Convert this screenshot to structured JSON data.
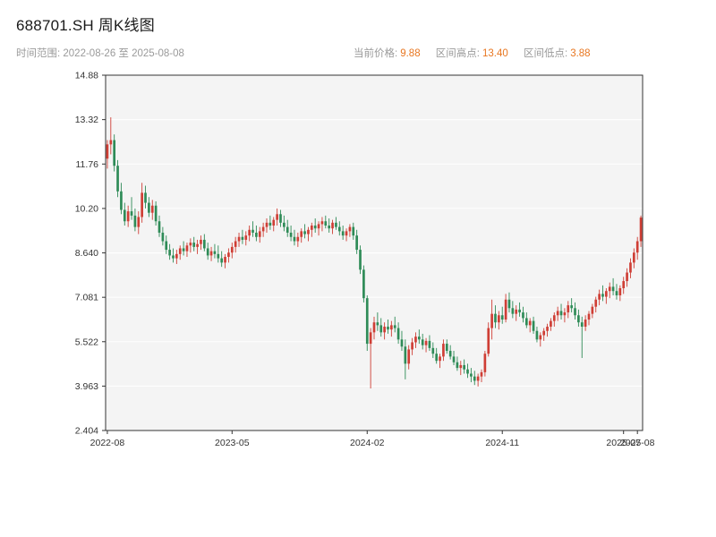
{
  "header": {
    "title": "688701.SH 周K线图",
    "range_label": "时间范围: 2022-08-26 至 2025-08-08",
    "accent_color": "#e87722",
    "stats": [
      {
        "label": "当前价格:",
        "value": "9.88"
      },
      {
        "label": "区间高点:",
        "value": "13.40"
      },
      {
        "label": "区间低点:",
        "value": "3.88"
      }
    ]
  },
  "chart_data": {
    "type": "candlestick",
    "title": "688701.SH 周K线图",
    "frequency": "weekly",
    "date_range": [
      "2022-08-26",
      "2025-08-08"
    ],
    "current_price": 9.88,
    "range_high": 13.4,
    "range_low": 3.88,
    "ylim": [
      2.404,
      14.88
    ],
    "grid": true,
    "colors": {
      "up": "#cf3e35",
      "down": "#2e8b57",
      "plot_bg": "#f4f4f4",
      "grid": "#ffffff",
      "spine": "#333333",
      "tick_text": "#333333"
    },
    "y_ticks": [
      {
        "v": 14.88,
        "label": "14.88"
      },
      {
        "v": 13.32,
        "label": "13.32"
      },
      {
        "v": 11.76,
        "label": "11.76"
      },
      {
        "v": 10.2,
        "label": "10.20"
      },
      {
        "v": 8.64,
        "label": "8.640"
      },
      {
        "v": 7.081,
        "label": "7.081"
      },
      {
        "v": 5.522,
        "label": "5.522"
      },
      {
        "v": 3.963,
        "label": "3.963"
      },
      {
        "v": 2.404,
        "label": "2.404"
      }
    ],
    "x_ticks": [
      {
        "i": 0,
        "label": "2022-08"
      },
      {
        "i": 36,
        "label": "2023-05"
      },
      {
        "i": 75,
        "label": "2024-02"
      },
      {
        "i": 114,
        "label": "2024-11"
      },
      {
        "i": 149,
        "label": "2025-07"
      },
      {
        "i": 153,
        "label": "2025-08"
      }
    ],
    "candles": [
      [
        "2022-08-26",
        11.95,
        12.6,
        11.6,
        12.45
      ],
      [
        "2022-09-02",
        12.45,
        13.4,
        12.1,
        12.6
      ],
      [
        "2022-09-09",
        12.6,
        12.8,
        11.5,
        11.7
      ],
      [
        "2022-09-16",
        11.7,
        11.9,
        10.6,
        10.8
      ],
      [
        "2022-09-23",
        10.8,
        11.1,
        10.0,
        10.15
      ],
      [
        "2022-09-30",
        10.15,
        10.4,
        9.6,
        9.75
      ],
      [
        "2022-10-07",
        9.75,
        10.3,
        9.55,
        10.1
      ],
      [
        "2022-10-14",
        10.1,
        10.6,
        9.8,
        9.95
      ],
      [
        "2022-10-21",
        9.95,
        10.2,
        9.4,
        9.55
      ],
      [
        "2022-10-28",
        9.55,
        10.1,
        9.3,
        9.9
      ],
      [
        "2022-11-04",
        9.9,
        11.1,
        9.7,
        10.75
      ],
      [
        "2022-11-11",
        10.75,
        11.0,
        10.2,
        10.4
      ],
      [
        "2022-11-18",
        10.4,
        10.6,
        9.9,
        10.05
      ],
      [
        "2022-11-25",
        10.05,
        10.5,
        9.8,
        10.3
      ],
      [
        "2022-12-02",
        10.3,
        10.45,
        9.6,
        9.75
      ],
      [
        "2022-12-09",
        9.75,
        9.95,
        9.2,
        9.35
      ],
      [
        "2022-12-16",
        9.35,
        9.55,
        8.9,
        9.05
      ],
      [
        "2022-12-23",
        9.05,
        9.25,
        8.6,
        8.75
      ],
      [
        "2022-12-30",
        8.75,
        8.95,
        8.4,
        8.55
      ],
      [
        "2023-01-06",
        8.55,
        8.8,
        8.3,
        8.45
      ],
      [
        "2023-01-13",
        8.45,
        8.75,
        8.25,
        8.6
      ],
      [
        "2023-01-20",
        8.6,
        8.9,
        8.4,
        8.8
      ],
      [
        "2023-01-27",
        8.8,
        9.05,
        8.55,
        8.7
      ],
      [
        "2023-02-03",
        8.7,
        9.0,
        8.5,
        8.9
      ],
      [
        "2023-02-10",
        8.9,
        9.15,
        8.65,
        9.0
      ],
      [
        "2023-02-17",
        9.0,
        9.2,
        8.7,
        8.85
      ],
      [
        "2023-02-24",
        8.85,
        9.1,
        8.6,
        8.95
      ],
      [
        "2023-03-03",
        8.95,
        9.25,
        8.75,
        9.1
      ],
      [
        "2023-03-10",
        9.1,
        9.3,
        8.7,
        8.8
      ],
      [
        "2023-03-17",
        8.8,
        9.0,
        8.4,
        8.55
      ],
      [
        "2023-03-24",
        8.55,
        8.85,
        8.35,
        8.7
      ],
      [
        "2023-03-31",
        8.7,
        8.95,
        8.45,
        8.6
      ],
      [
        "2023-04-07",
        8.6,
        8.9,
        8.3,
        8.45
      ],
      [
        "2023-04-14",
        8.45,
        8.7,
        8.15,
        8.3
      ],
      [
        "2023-04-21",
        8.3,
        8.6,
        8.1,
        8.5
      ],
      [
        "2023-04-28",
        8.5,
        8.8,
        8.3,
        8.65
      ],
      [
        "2023-05-05",
        8.65,
        9.0,
        8.45,
        8.85
      ],
      [
        "2023-05-12",
        8.85,
        9.2,
        8.65,
        9.05
      ],
      [
        "2023-05-19",
        9.05,
        9.35,
        8.85,
        9.2
      ],
      [
        "2023-05-26",
        9.2,
        9.45,
        8.95,
        9.1
      ],
      [
        "2023-06-02",
        9.1,
        9.4,
        8.9,
        9.25
      ],
      [
        "2023-06-09",
        9.25,
        9.6,
        9.05,
        9.45
      ],
      [
        "2023-06-16",
        9.45,
        9.75,
        9.2,
        9.35
      ],
      [
        "2023-06-23",
        9.35,
        9.6,
        9.05,
        9.2
      ],
      [
        "2023-06-30",
        9.2,
        9.55,
        9.0,
        9.4
      ],
      [
        "2023-07-07",
        9.4,
        9.7,
        9.2,
        9.55
      ],
      [
        "2023-07-14",
        9.55,
        9.85,
        9.35,
        9.7
      ],
      [
        "2023-07-21",
        9.7,
        9.95,
        9.45,
        9.6
      ],
      [
        "2023-07-28",
        9.6,
        9.9,
        9.4,
        9.8
      ],
      [
        "2023-08-04",
        9.8,
        10.2,
        9.6,
        10.0
      ],
      [
        "2023-08-11",
        10.0,
        10.15,
        9.55,
        9.7
      ],
      [
        "2023-08-18",
        9.7,
        9.95,
        9.4,
        9.55
      ],
      [
        "2023-08-25",
        9.55,
        9.8,
        9.2,
        9.35
      ],
      [
        "2023-09-01",
        9.35,
        9.6,
        9.05,
        9.2
      ],
      [
        "2023-09-08",
        9.2,
        9.45,
        8.9,
        9.05
      ],
      [
        "2023-09-15",
        9.05,
        9.35,
        8.85,
        9.2
      ],
      [
        "2023-09-22",
        9.2,
        9.5,
        9.0,
        9.4
      ],
      [
        "2023-09-29",
        9.4,
        9.65,
        9.15,
        9.3
      ],
      [
        "2023-10-06",
        9.3,
        9.55,
        9.05,
        9.45
      ],
      [
        "2023-10-13",
        9.45,
        9.7,
        9.2,
        9.6
      ],
      [
        "2023-10-20",
        9.6,
        9.85,
        9.35,
        9.5
      ],
      [
        "2023-10-27",
        9.5,
        9.75,
        9.25,
        9.65
      ],
      [
        "2023-11-03",
        9.65,
        9.9,
        9.4,
        9.75
      ],
      [
        "2023-11-10",
        9.75,
        9.95,
        9.5,
        9.6
      ],
      [
        "2023-11-17",
        9.6,
        9.85,
        9.35,
        9.5
      ],
      [
        "2023-11-24",
        9.5,
        9.8,
        9.3,
        9.7
      ],
      [
        "2023-12-01",
        9.7,
        9.9,
        9.45,
        9.55
      ],
      [
        "2023-12-08",
        9.55,
        9.75,
        9.25,
        9.4
      ],
      [
        "2023-12-15",
        9.4,
        9.6,
        9.1,
        9.25
      ],
      [
        "2023-12-22",
        9.25,
        9.5,
        9.05,
        9.4
      ],
      [
        "2023-12-29",
        9.4,
        9.65,
        9.2,
        9.55
      ],
      [
        "2024-01-05",
        9.55,
        9.7,
        9.1,
        9.25
      ],
      [
        "2024-01-12",
        9.25,
        9.45,
        8.6,
        8.75
      ],
      [
        "2024-01-19",
        8.75,
        8.9,
        7.9,
        8.05
      ],
      [
        "2024-01-26",
        8.05,
        8.2,
        6.9,
        7.05
      ],
      [
        "2024-02-02",
        7.05,
        7.15,
        5.2,
        5.45
      ],
      [
        "2024-02-09",
        5.45,
        6.0,
        3.88,
        5.85
      ],
      [
        "2024-02-16",
        5.85,
        6.4,
        5.6,
        6.2
      ],
      [
        "2024-02-23",
        6.2,
        6.55,
        5.9,
        6.1
      ],
      [
        "2024-03-01",
        6.1,
        6.35,
        5.7,
        5.85
      ],
      [
        "2024-03-08",
        5.85,
        6.2,
        5.6,
        6.05
      ],
      [
        "2024-03-15",
        6.05,
        6.3,
        5.8,
        5.95
      ],
      [
        "2024-03-22",
        5.95,
        6.25,
        5.7,
        6.1
      ],
      [
        "2024-03-29",
        6.1,
        6.4,
        5.85,
        6.0
      ],
      [
        "2024-04-05",
        6.0,
        6.2,
        5.45,
        5.6
      ],
      [
        "2024-04-12",
        5.6,
        5.9,
        5.2,
        5.35
      ],
      [
        "2024-04-19",
        5.35,
        5.6,
        4.2,
        4.75
      ],
      [
        "2024-04-26",
        4.75,
        5.4,
        4.55,
        5.25
      ],
      [
        "2024-05-03",
        5.25,
        5.65,
        5.05,
        5.5
      ],
      [
        "2024-05-10",
        5.5,
        5.85,
        5.3,
        5.7
      ],
      [
        "2024-05-17",
        5.7,
        5.95,
        5.45,
        5.6
      ],
      [
        "2024-05-24",
        5.6,
        5.8,
        5.25,
        5.4
      ],
      [
        "2024-05-31",
        5.4,
        5.65,
        5.15,
        5.55
      ],
      [
        "2024-06-07",
        5.55,
        5.75,
        5.2,
        5.3
      ],
      [
        "2024-06-14",
        5.3,
        5.5,
        4.95,
        5.1
      ],
      [
        "2024-06-21",
        5.1,
        5.3,
        4.75,
        4.85
      ],
      [
        "2024-06-28",
        4.85,
        5.1,
        4.6,
        5.0
      ],
      [
        "2024-07-05",
        5.0,
        5.6,
        4.85,
        5.45
      ],
      [
        "2024-07-12",
        5.45,
        5.6,
        5.1,
        5.2
      ],
      [
        "2024-07-19",
        5.2,
        5.4,
        4.9,
        5.0
      ],
      [
        "2024-07-26",
        5.0,
        5.2,
        4.7,
        4.8
      ],
      [
        "2024-08-02",
        4.8,
        5.0,
        4.5,
        4.6
      ],
      [
        "2024-08-09",
        4.6,
        4.85,
        4.35,
        4.7
      ],
      [
        "2024-08-16",
        4.7,
        4.9,
        4.4,
        4.55
      ],
      [
        "2024-08-23",
        4.55,
        4.75,
        4.25,
        4.4
      ],
      [
        "2024-08-30",
        4.4,
        4.6,
        4.1,
        4.3
      ],
      [
        "2024-09-06",
        4.3,
        4.5,
        4.0,
        4.15
      ],
      [
        "2024-09-13",
        4.15,
        4.4,
        3.95,
        4.3
      ],
      [
        "2024-09-20",
        4.3,
        4.55,
        4.1,
        4.45
      ],
      [
        "2024-09-27",
        4.45,
        5.2,
        4.3,
        5.1
      ],
      [
        "2024-10-04",
        5.1,
        6.2,
        5.0,
        6.0
      ],
      [
        "2024-10-11",
        6.0,
        7.0,
        5.6,
        6.5
      ],
      [
        "2024-10-18",
        6.5,
        6.8,
        6.0,
        6.2
      ],
      [
        "2024-10-25",
        6.2,
        6.6,
        5.95,
        6.45
      ],
      [
        "2024-11-01",
        6.45,
        6.75,
        6.15,
        6.3
      ],
      [
        "2024-11-08",
        6.3,
        7.2,
        6.2,
        7.0
      ],
      [
        "2024-11-15",
        7.0,
        7.25,
        6.55,
        6.7
      ],
      [
        "2024-11-22",
        6.7,
        6.95,
        6.35,
        6.5
      ],
      [
        "2024-11-29",
        6.5,
        6.8,
        6.25,
        6.65
      ],
      [
        "2024-12-06",
        6.65,
        6.9,
        6.4,
        6.55
      ],
      [
        "2024-12-13",
        6.55,
        6.75,
        6.2,
        6.35
      ],
      [
        "2024-12-20",
        6.35,
        6.55,
        6.0,
        6.1
      ],
      [
        "2024-12-27",
        6.1,
        6.35,
        5.85,
        6.25
      ],
      [
        "2025-01-03",
        6.25,
        6.4,
        5.8,
        5.9
      ],
      [
        "2025-01-10",
        5.9,
        6.05,
        5.5,
        5.6
      ],
      [
        "2025-01-17",
        5.6,
        5.85,
        5.35,
        5.75
      ],
      [
        "2025-01-24",
        5.75,
        6.0,
        5.55,
        5.9
      ],
      [
        "2025-01-31",
        5.9,
        6.15,
        5.7,
        6.05
      ],
      [
        "2025-02-07",
        6.05,
        6.35,
        5.9,
        6.25
      ],
      [
        "2025-02-14",
        6.25,
        6.55,
        6.05,
        6.45
      ],
      [
        "2025-02-21",
        6.45,
        6.75,
        6.25,
        6.6
      ],
      [
        "2025-02-28",
        6.6,
        6.85,
        6.3,
        6.45
      ],
      [
        "2025-03-07",
        6.45,
        6.7,
        6.2,
        6.55
      ],
      [
        "2025-03-14",
        6.55,
        6.95,
        6.35,
        6.8
      ],
      [
        "2025-03-21",
        6.8,
        7.05,
        6.55,
        6.7
      ],
      [
        "2025-03-28",
        6.7,
        6.9,
        6.3,
        6.45
      ],
      [
        "2025-04-04",
        6.45,
        6.65,
        6.05,
        6.2
      ],
      [
        "2025-04-11",
        6.2,
        6.4,
        4.95,
        6.05
      ],
      [
        "2025-04-18",
        6.05,
        6.45,
        5.9,
        6.3
      ],
      [
        "2025-04-25",
        6.3,
        6.6,
        6.1,
        6.5
      ],
      [
        "2025-05-02",
        6.5,
        6.85,
        6.35,
        6.75
      ],
      [
        "2025-05-09",
        6.75,
        7.1,
        6.55,
        7.0
      ],
      [
        "2025-05-16",
        7.0,
        7.35,
        6.8,
        7.2
      ],
      [
        "2025-05-23",
        7.2,
        7.5,
        6.95,
        7.1
      ],
      [
        "2025-05-30",
        7.1,
        7.4,
        6.85,
        7.3
      ],
      [
        "2025-06-06",
        7.3,
        7.6,
        7.05,
        7.45
      ],
      [
        "2025-06-13",
        7.45,
        7.75,
        7.15,
        7.3
      ],
      [
        "2025-06-20",
        7.3,
        7.55,
        7.0,
        7.15
      ],
      [
        "2025-06-27",
        7.15,
        7.5,
        6.95,
        7.4
      ],
      [
        "2025-07-04",
        7.4,
        7.8,
        7.2,
        7.65
      ],
      [
        "2025-07-11",
        7.65,
        8.1,
        7.45,
        7.95
      ],
      [
        "2025-07-18",
        7.95,
        8.45,
        7.75,
        8.3
      ],
      [
        "2025-07-25",
        8.3,
        8.8,
        8.1,
        8.65
      ],
      [
        "2025-08-01",
        8.65,
        9.2,
        8.4,
        9.05
      ],
      [
        "2025-08-08",
        9.05,
        9.95,
        8.85,
        9.88
      ]
    ]
  }
}
